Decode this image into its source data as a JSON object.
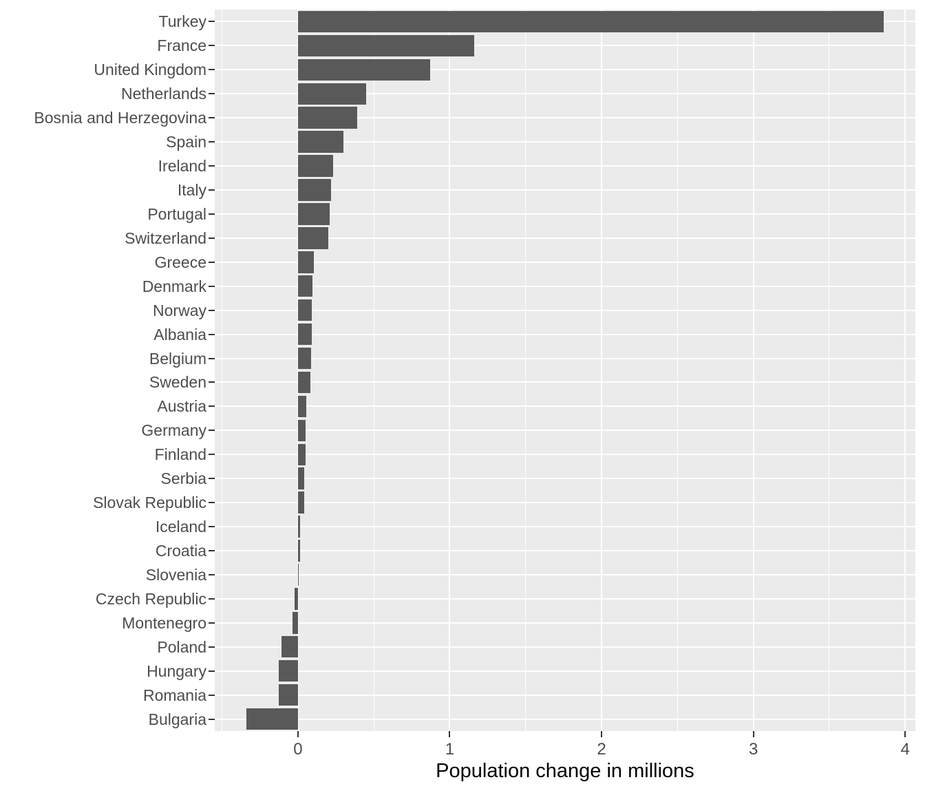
{
  "chart_data": {
    "type": "bar",
    "orientation": "horizontal",
    "title": "",
    "xlabel": "Population change in millions",
    "ylabel": "",
    "categories": [
      "Turkey",
      "France",
      "United Kingdom",
      "Netherlands",
      "Bosnia and Herzegovina",
      "Spain",
      "Ireland",
      "Italy",
      "Portugal",
      "Switzerland",
      "Greece",
      "Denmark",
      "Norway",
      "Albania",
      "Belgium",
      "Sweden",
      "Austria",
      "Germany",
      "Finland",
      "Serbia",
      "Slovak Republic",
      "Iceland",
      "Croatia",
      "Slovenia",
      "Czech Republic",
      "Montenegro",
      "Poland",
      "Hungary",
      "Romania",
      "Bulgaria"
    ],
    "values": [
      3.86,
      1.16,
      0.87,
      0.45,
      0.39,
      0.3,
      0.23,
      0.22,
      0.21,
      0.2,
      0.105,
      0.096,
      0.093,
      0.091,
      0.087,
      0.081,
      0.053,
      0.052,
      0.049,
      0.043,
      0.04,
      0.016,
      0.015,
      0.006,
      -0.023,
      -0.037,
      -0.109,
      -0.125,
      -0.126,
      -0.338
    ],
    "xlim": [
      -0.548,
      4.067
    ],
    "x_ticks": [
      0,
      1,
      2,
      3,
      4
    ],
    "x_minor_ticks": [
      -0.5,
      0.5,
      1.5,
      2.5,
      3.5
    ],
    "grid": true,
    "legend_position": "none",
    "bar_width_fraction": 0.9,
    "colors": {
      "bar_fill": "#595959",
      "panel_background": "#EBEBEB",
      "gridline": "#FFFFFF",
      "axis_text": "#4D4D4D",
      "axis_title": "#000000",
      "tick_mark": "#333333",
      "figure_background": "#FFFFFF"
    }
  }
}
